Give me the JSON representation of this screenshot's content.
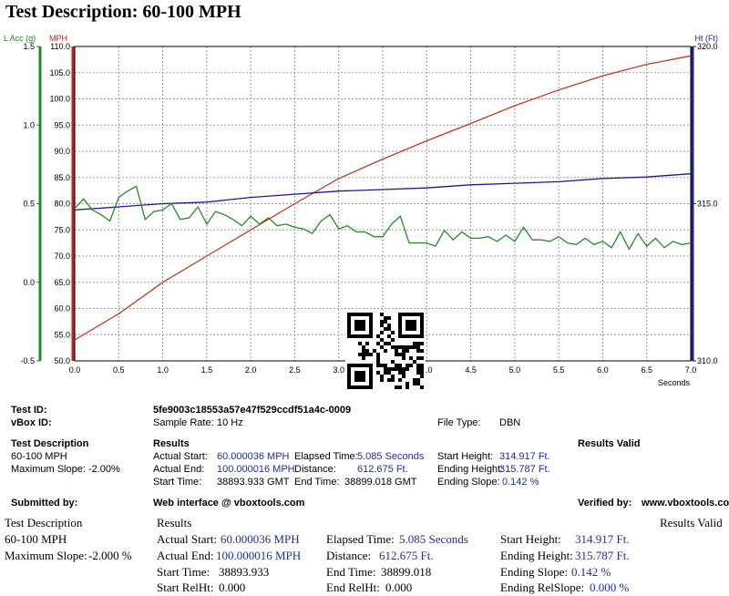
{
  "title": "Test Description: 60-100 MPH",
  "chart_data": {
    "type": "line",
    "x_label": "Seconds",
    "x_ticks": [
      "0.0",
      "0.5",
      "1.0",
      "1.5",
      "2.0",
      "2.5",
      "3.0",
      "3.5",
      "4.0",
      "4.5",
      "5.0",
      "5.5",
      "6.0",
      "6.5",
      "7.0"
    ],
    "xlim": [
      0,
      7
    ],
    "axes": {
      "lacc": {
        "label": "L Acc (g)",
        "range": [
          -0.5,
          1.5
        ],
        "ticks": [
          "1.5",
          "1.0",
          "0.5",
          "0.0",
          "-0.5"
        ],
        "color": "#228822"
      },
      "mph": {
        "label": "MPH",
        "range": [
          50,
          110
        ],
        "ticks": [
          "110.0",
          "105.0",
          "100.0",
          "95.0",
          "90.0",
          "85.0",
          "80.0",
          "75.0",
          "70.0",
          "65.0",
          "60.0",
          "55.0",
          "50.0"
        ],
        "color": "#bb2222"
      },
      "ht": {
        "label": "Ht (Ft)",
        "range": [
          310,
          320
        ],
        "ticks": [
          "320.0",
          "315.0",
          "310.0"
        ],
        "color": "#22228a"
      }
    },
    "series": [
      {
        "name": "MPH",
        "axis": "mph",
        "color": "#c0392b",
        "x": [
          0,
          0.5,
          1,
          1.5,
          2,
          2.5,
          3,
          3.5,
          4,
          4.5,
          5,
          5.5,
          6,
          6.5,
          7
        ],
        "y": [
          54,
          59,
          65,
          70,
          75,
          80,
          84.8,
          88.5,
          92,
          95.3,
          98.7,
          101.7,
          104.4,
          106.6,
          108.2
        ]
      },
      {
        "name": "Ht (Ft)",
        "axis": "ht",
        "color": "#1a1a8c",
        "x": [
          0,
          0.5,
          1,
          1.5,
          2,
          2.5,
          3,
          3.5,
          4,
          4.5,
          5,
          5.5,
          6,
          6.5,
          7
        ],
        "y": [
          314.8,
          314.9,
          315.0,
          315.05,
          315.2,
          315.3,
          315.4,
          315.45,
          315.5,
          315.6,
          315.65,
          315.7,
          315.8,
          315.85,
          315.95
        ]
      },
      {
        "name": "L Acc (g)",
        "axis": "lacc",
        "color": "#2a8a2a",
        "x": [
          0,
          0.1,
          0.2,
          0.3,
          0.4,
          0.5,
          0.6,
          0.7,
          0.8,
          0.9,
          1.0,
          1.1,
          1.2,
          1.3,
          1.4,
          1.5,
          1.6,
          1.7,
          1.8,
          1.9,
          2.0,
          2.1,
          2.2,
          2.3,
          2.4,
          2.5,
          2.6,
          2.7,
          2.8,
          2.9,
          3.0,
          3.1,
          3.2,
          3.3,
          3.4,
          3.5,
          3.6,
          3.7,
          3.8,
          3.9,
          4.0,
          4.1,
          4.2,
          4.3,
          4.4,
          4.5,
          4.6,
          4.7,
          4.8,
          4.9,
          5.0,
          5.1,
          5.2,
          5.3,
          5.4,
          5.5,
          5.6,
          5.7,
          5.8,
          5.9,
          6.0,
          6.1,
          6.2,
          6.3,
          6.4,
          6.5,
          6.6,
          6.7,
          6.8,
          6.9,
          7.0
        ],
        "y": [
          0.47,
          0.53,
          0.46,
          0.43,
          0.39,
          0.54,
          0.58,
          0.61,
          0.4,
          0.45,
          0.46,
          0.5,
          0.4,
          0.41,
          0.48,
          0.37,
          0.45,
          0.43,
          0.4,
          0.36,
          0.42,
          0.37,
          0.41,
          0.36,
          0.37,
          0.35,
          0.34,
          0.31,
          0.39,
          0.43,
          0.34,
          0.36,
          0.32,
          0.32,
          0.29,
          0.29,
          0.37,
          0.42,
          0.25,
          0.25,
          0.25,
          0.23,
          0.33,
          0.27,
          0.32,
          0.28,
          0.28,
          0.29,
          0.26,
          0.3,
          0.26,
          0.35,
          0.27,
          0.27,
          0.26,
          0.29,
          0.25,
          0.24,
          0.28,
          0.24,
          0.26,
          0.22,
          0.32,
          0.21,
          0.31,
          0.23,
          0.28,
          0.22,
          0.26,
          0.24,
          0.25
        ]
      }
    ]
  },
  "info": {
    "test_id_label": "Test ID:",
    "test_id": "5fe9003c18553a57e47f529ccdf51a4c-0009",
    "vbox_id_label": "vBox ID:",
    "sample_rate_label": "Sample Rate:",
    "sample_rate": "10 Hz",
    "file_type_label": "File Type:",
    "file_type": "DBN",
    "test_description_label": "Test Description",
    "results_label": "Results",
    "results_valid": "Results Valid",
    "description": "60-100 MPH",
    "max_slope": "Maximum Slope: -2.00%",
    "actual_start_label": "Actual Start:",
    "actual_start": "60.000036 MPH",
    "actual_end_label": "Actual End:",
    "actual_end": "100.000016 MPH",
    "start_time_label": "Start Time:",
    "start_time": "38893.933 GMT",
    "elapsed_label": "Elapsed Time:",
    "elapsed": "5.085 Seconds",
    "distance_label": "Distance:",
    "distance": "612.675 Ft.",
    "end_time_label": "End Time:",
    "end_time": "38899.018 GMT",
    "start_height_label": "Start Height:",
    "start_height": "314.917 Ft.",
    "ending_height_label": "Ending Height:",
    "ending_height": "315.787 Ft.",
    "ending_slope_label": "Ending Slope:",
    "ending_slope": "0.142 %",
    "submitted_label": "Submitted by:",
    "web_interface": "Web interface @ vboxtools.com",
    "verified_label": "Verified by:",
    "verified": "www.vboxtools.com"
  },
  "lower": {
    "test_description": "Test Description",
    "results": "Results",
    "results_valid": "Results Valid",
    "description": "60-100 MPH",
    "max_slope_label": "Maximum Slope:",
    "max_slope": "-2.000 %",
    "actual_start_label": "Actual Start:",
    "actual_start": "60.000036 MPH",
    "actual_end_label": "Actual End:",
    "actual_end": "100.000016 MPH",
    "start_time_label": "Start Time:",
    "start_time": "38893.933",
    "start_relht_label": "Start RelHt:",
    "start_relht": "0.000",
    "elapsed_label": "Elapsed Time:",
    "elapsed": "5.085 Seconds",
    "distance_label": "Distance:",
    "distance": "612.675 Ft.",
    "end_time_label": "End Time:",
    "end_time": "38899.018",
    "end_relht_label": "End RelHt:",
    "end_relht": "0.000",
    "start_height_label": "Start Height:",
    "start_height": "314.917 Ft.",
    "ending_height_label": "Ending Height:",
    "ending_height": "315.787 Ft.",
    "ending_slope_label": "Ending Slope:",
    "ending_slope": "0.142 %",
    "ending_relslope_label": "Ending RelSlope:",
    "ending_relslope": "0.000 %"
  }
}
